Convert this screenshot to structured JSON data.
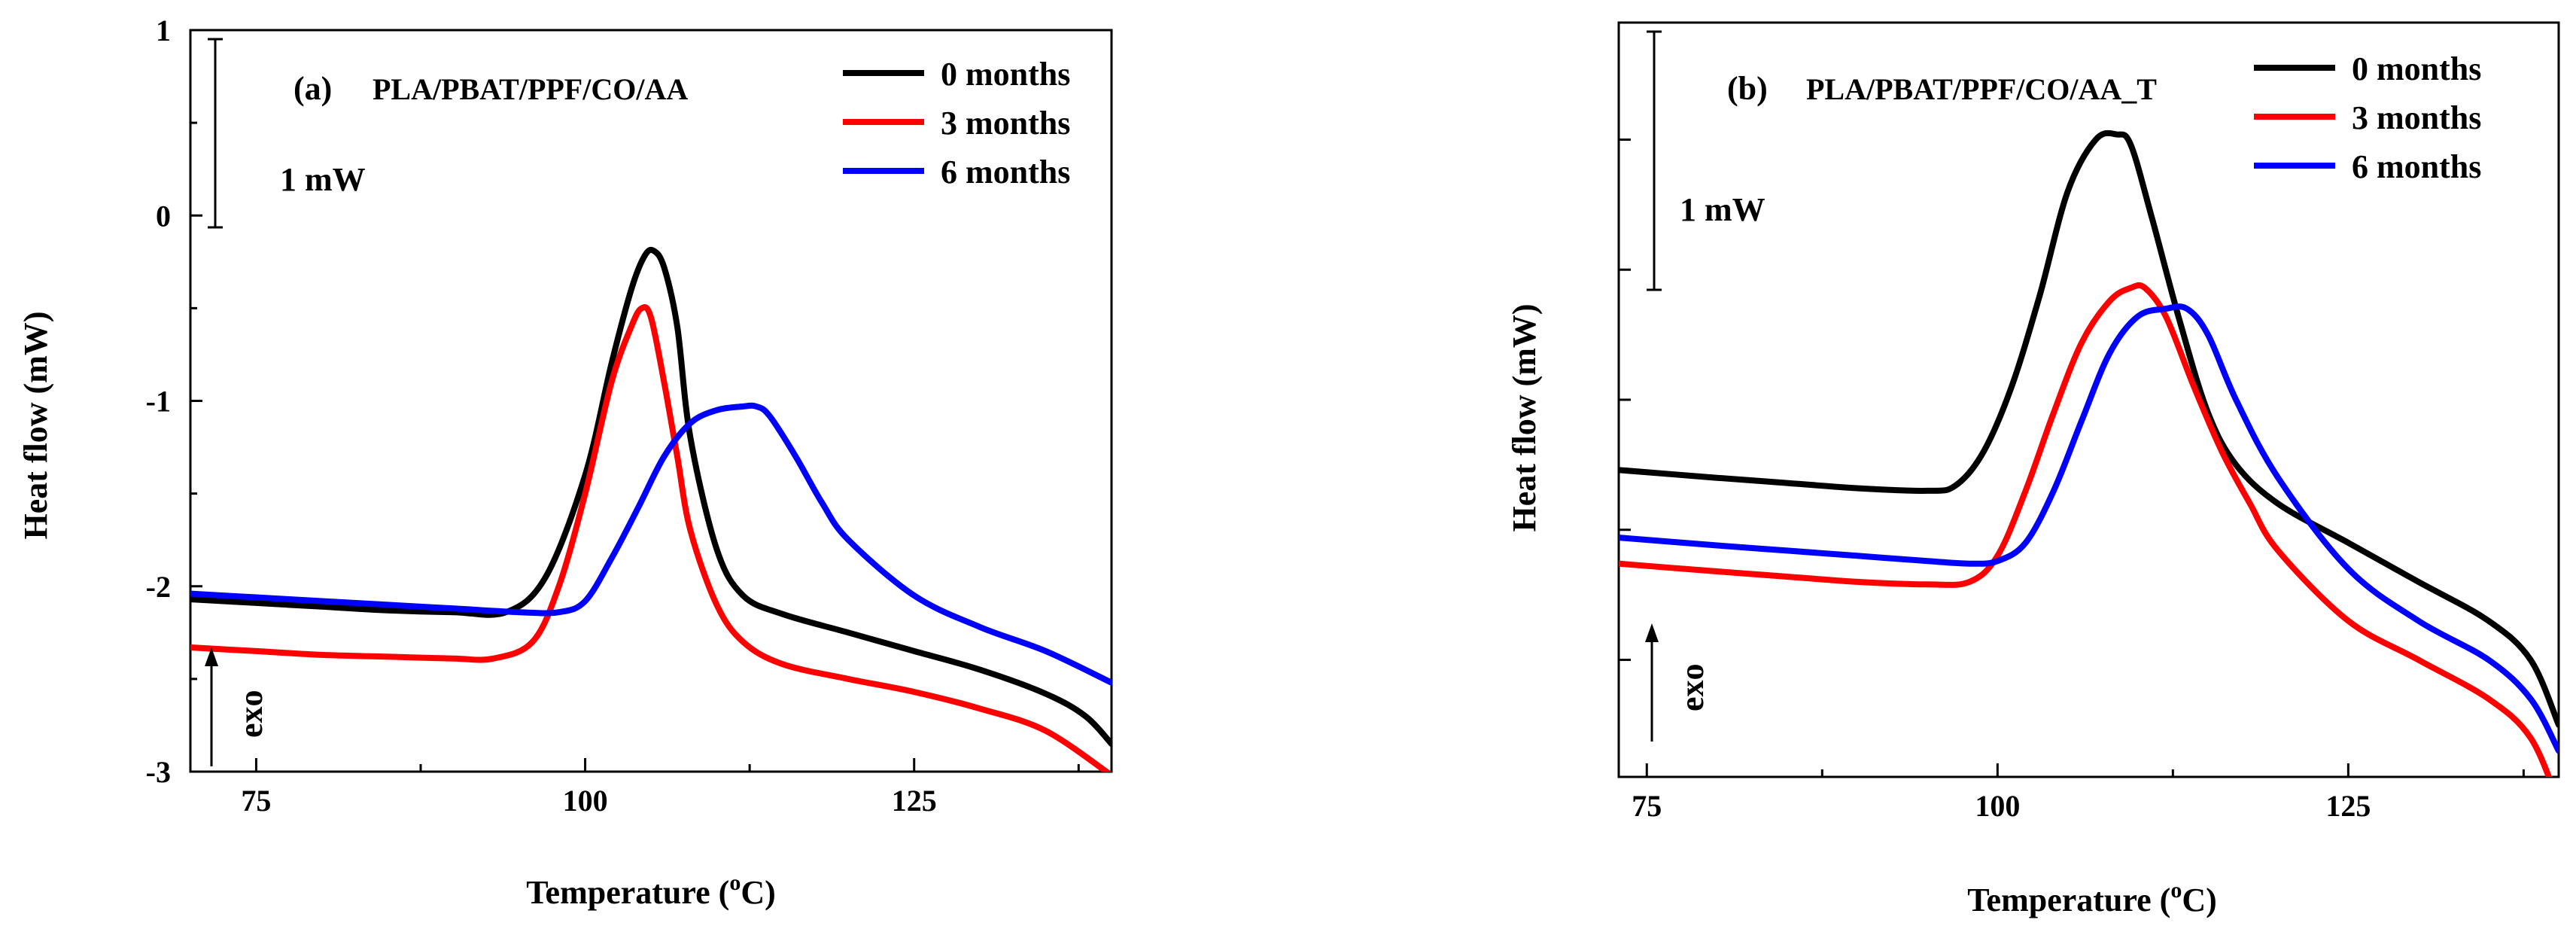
{
  "chart_data": [
    {
      "type": "line",
      "panel_label": "(a)",
      "title": "PLA/PBAT/PPF/CO/AA",
      "xlabel": "Temperature (",
      "xlabel_sup": "o",
      "xlabel_unit": "C)",
      "ylabel": "Heat flow (mW)",
      "xlim": [
        70,
        140
      ],
      "ylim": [
        -3,
        1
      ],
      "x_ticks": [
        75,
        100,
        125
      ],
      "x_tick_labels": [
        "75",
        "100",
        "125"
      ],
      "y_ticks": [
        -3,
        -2,
        -1,
        0,
        1
      ],
      "y_tick_labels": [
        "-3",
        "-2",
        "-1",
        "0",
        "1"
      ],
      "scale_bar_label": "1 mW",
      "exo_label": "exo",
      "legend_position": "top-right",
      "series": [
        {
          "name": "0 months",
          "color": "#000000",
          "x": [
            70,
            75,
            80,
            85,
            90,
            94,
            97,
            100,
            102,
            103.5,
            104.5,
            105.2,
            106,
            107,
            108,
            110,
            112,
            115,
            120,
            125,
            130,
            135,
            138,
            140
          ],
          "y": [
            -2.07,
            -2.09,
            -2.11,
            -2.13,
            -2.14,
            -2.14,
            -1.95,
            -1.4,
            -0.8,
            -0.4,
            -0.22,
            -0.19,
            -0.28,
            -0.6,
            -1.2,
            -1.8,
            -2.05,
            -2.15,
            -2.25,
            -2.35,
            -2.45,
            -2.58,
            -2.7,
            -2.85
          ]
        },
        {
          "name": "3 months",
          "color": "#ff0000",
          "x": [
            70,
            75,
            80,
            85,
            90,
            93,
            96,
            98,
            100,
            102,
            103.5,
            104.3,
            105,
            106,
            107,
            108,
            110,
            112,
            115,
            120,
            125,
            130,
            135,
            140
          ],
          "y": [
            -2.33,
            -2.35,
            -2.37,
            -2.38,
            -2.39,
            -2.39,
            -2.3,
            -2.0,
            -1.5,
            -0.9,
            -0.6,
            -0.5,
            -0.55,
            -0.9,
            -1.3,
            -1.7,
            -2.1,
            -2.3,
            -2.42,
            -2.5,
            -2.57,
            -2.66,
            -2.78,
            -3.02
          ]
        },
        {
          "name": "6 months",
          "color": "#0000ff",
          "x": [
            70,
            75,
            80,
            85,
            90,
            95,
            98,
            100,
            102,
            104,
            106,
            108,
            110,
            112,
            113,
            114,
            116,
            118,
            120,
            125,
            130,
            135,
            140
          ],
          "y": [
            -2.04,
            -2.06,
            -2.08,
            -2.1,
            -2.12,
            -2.14,
            -2.14,
            -2.08,
            -1.85,
            -1.58,
            -1.3,
            -1.12,
            -1.05,
            -1.03,
            -1.03,
            -1.08,
            -1.3,
            -1.55,
            -1.75,
            -2.05,
            -2.22,
            -2.35,
            -2.52
          ]
        }
      ]
    },
    {
      "type": "line",
      "panel_label": "(b)",
      "title": "PLA/PBAT/PPF/CO/AA_T",
      "xlabel": "Temperature (",
      "xlabel_sup": "o",
      "xlabel_unit": "C)",
      "ylabel": "Heat flow (mW)",
      "xlim": [
        73,
        140
      ],
      "ylim": [
        -0.95,
        1.95
      ],
      "x_ticks": [
        75,
        100,
        125
      ],
      "x_tick_labels": [
        "75",
        "100",
        "125"
      ],
      "y_ticks": [
        -0.5,
        0,
        0.5,
        1,
        1.5
      ],
      "scale_bar_label": "1 mW",
      "exo_label": "exo",
      "legend_position": "top-right",
      "series": [
        {
          "name": "0 months",
          "color": "#000000",
          "x": [
            73,
            80,
            85,
            90,
            95,
            97,
            99,
            101,
            103,
            105,
            107,
            108.5,
            109.5,
            111,
            113,
            115,
            117,
            120,
            125,
            130,
            135,
            138,
            140
          ],
          "y": [
            0.23,
            0.2,
            0.18,
            0.16,
            0.15,
            0.17,
            0.3,
            0.55,
            0.9,
            1.3,
            1.5,
            1.52,
            1.48,
            1.2,
            0.8,
            0.45,
            0.25,
            0.1,
            -0.05,
            -0.2,
            -0.35,
            -0.5,
            -0.75
          ]
        },
        {
          "name": "3 months",
          "color": "#ff0000",
          "x": [
            73,
            80,
            85,
            90,
            95,
            98,
            100,
            102,
            104,
            106,
            108,
            109.5,
            110.5,
            112,
            114,
            116,
            118,
            120,
            125,
            130,
            135,
            138,
            140
          ],
          "y": [
            -0.13,
            -0.16,
            -0.18,
            -0.2,
            -0.21,
            -0.2,
            -0.1,
            0.15,
            0.45,
            0.72,
            0.88,
            0.93,
            0.93,
            0.82,
            0.55,
            0.3,
            0.1,
            -0.08,
            -0.35,
            -0.5,
            -0.65,
            -0.8,
            -1.05
          ]
        },
        {
          "name": "6 months",
          "color": "#0000ff",
          "x": [
            73,
            80,
            85,
            90,
            95,
            98,
            100,
            102,
            104,
            106,
            108,
            110,
            112,
            113.5,
            115,
            117,
            120,
            125,
            130,
            135,
            138,
            140
          ],
          "y": [
            -0.03,
            -0.06,
            -0.08,
            -0.1,
            -0.12,
            -0.13,
            -0.12,
            -0.05,
            0.15,
            0.42,
            0.68,
            0.82,
            0.85,
            0.85,
            0.75,
            0.5,
            0.2,
            -0.15,
            -0.35,
            -0.5,
            -0.65,
            -0.85
          ]
        }
      ]
    }
  ]
}
